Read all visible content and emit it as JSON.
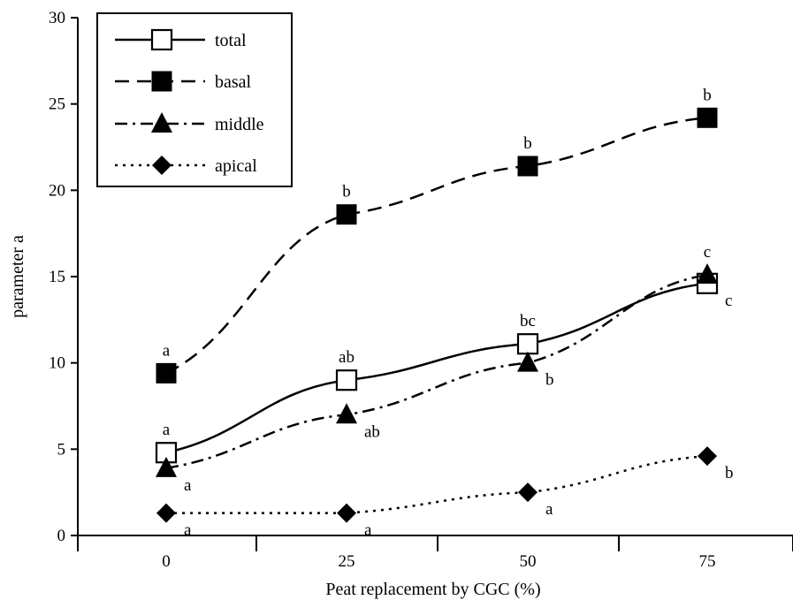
{
  "chart_data": {
    "type": "line",
    "title": "",
    "xlabel": "Peat replacement by CGC  (%)",
    "ylabel": "parameter a",
    "categories": [
      "0",
      "25",
      "50",
      "75"
    ],
    "ylim": [
      0,
      30
    ],
    "yticks": [
      "0",
      "5",
      "10",
      "15",
      "20",
      "25",
      "30"
    ],
    "grid": false,
    "legend_position": "top-left",
    "series": [
      {
        "name": "total",
        "values": [
          4.8,
          9.0,
          11.1,
          14.6
        ],
        "labels": [
          "a",
          "ab",
          "bc",
          "c"
        ],
        "label_side": [
          "above",
          "above",
          "above",
          "right"
        ],
        "marker": "open-square",
        "line_style": "solid",
        "color": "#000000"
      },
      {
        "name": "basal",
        "values": [
          9.4,
          18.6,
          21.4,
          24.2
        ],
        "labels": [
          "a",
          "b",
          "b",
          "b"
        ],
        "label_side": [
          "above",
          "above",
          "above",
          "above"
        ],
        "marker": "filled-square",
        "line_style": "dashed",
        "color": "#000000"
      },
      {
        "name": "middle",
        "values": [
          3.9,
          7.0,
          10.0,
          15.1
        ],
        "labels": [
          "a",
          "ab",
          "b",
          "c"
        ],
        "label_side": [
          "right",
          "right",
          "right",
          "above"
        ],
        "marker": "filled-triangle",
        "line_style": "dash-dot",
        "color": "#000000"
      },
      {
        "name": "apical",
        "values": [
          1.3,
          1.3,
          2.5,
          4.6
        ],
        "labels": [
          "a",
          "a",
          "a",
          "b"
        ],
        "label_side": [
          "right",
          "right",
          "right",
          "right"
        ],
        "marker": "filled-diamond",
        "line_style": "dotted",
        "color": "#000000"
      }
    ]
  }
}
